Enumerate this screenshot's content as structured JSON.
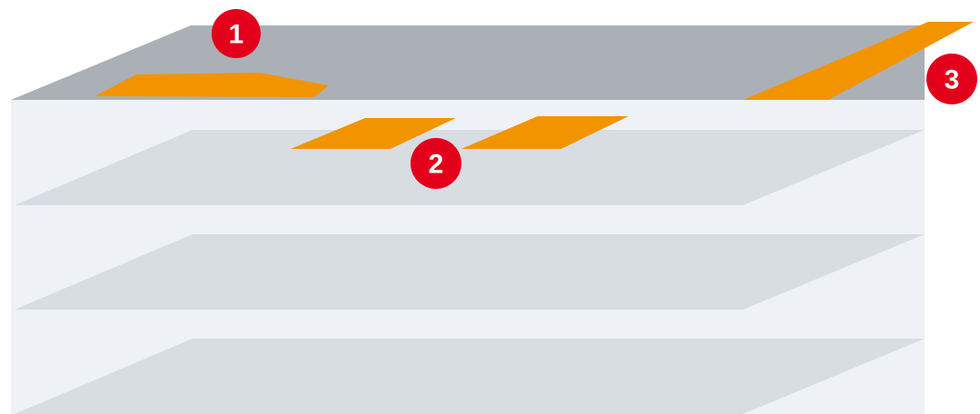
{
  "badges": [
    {
      "label": "1"
    },
    {
      "label": "2"
    },
    {
      "label": "3"
    }
  ]
}
